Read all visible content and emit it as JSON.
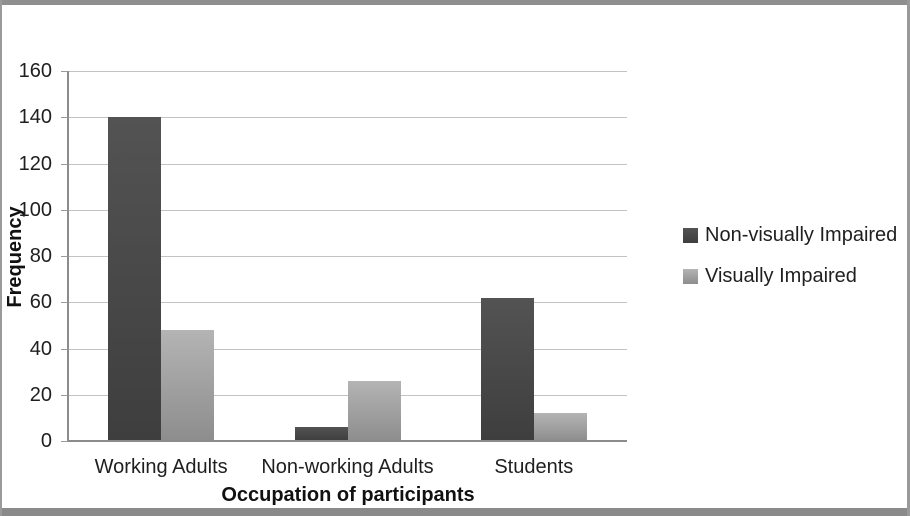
{
  "figure": {
    "type_label": "bar-chart-figure"
  },
  "chart_data": {
    "type": "bar",
    "title": "",
    "categories": [
      "Working Adults",
      "Non-working Adults",
      "Students"
    ],
    "series": [
      {
        "name": "Non-visually Impaired",
        "values": [
          140,
          6,
          62
        ]
      },
      {
        "name": "Visually Impaired",
        "values": [
          48,
          26,
          12
        ]
      }
    ],
    "xlabel": "Occupation of participants",
    "ylabel": "Frequency",
    "ylim": [
      0,
      160
    ],
    "yticks": [
      0,
      20,
      40,
      60,
      80,
      100,
      120,
      140,
      160
    ],
    "grid": true,
    "legend_position": "right"
  },
  "colors": {
    "series_dark_top": "#535353",
    "series_dark_bottom": "#3e3e3e",
    "series_light_top": "#b4b4b4",
    "series_light_bottom": "#8d8d8d",
    "gridline": "#c3c3c3",
    "axis": "#8c8c8c",
    "frame": "#8f8f8f",
    "text": "#1f1f1f",
    "background": "#ffffff"
  }
}
